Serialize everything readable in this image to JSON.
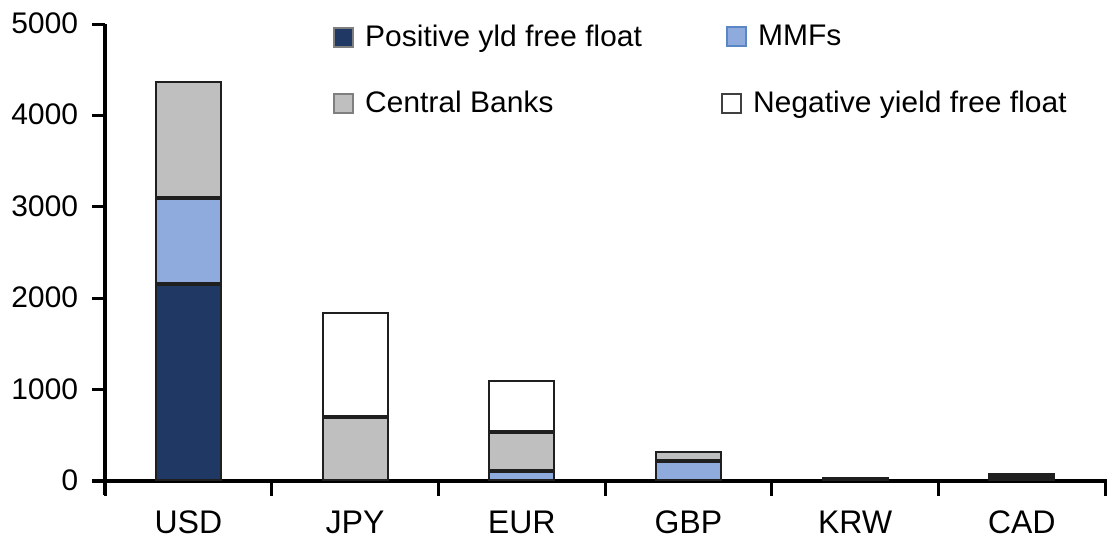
{
  "chart_data": {
    "type": "bar",
    "stacked": true,
    "title": "",
    "xlabel": "",
    "ylabel": "",
    "categories": [
      "USD",
      "JPY",
      "EUR",
      "GBP",
      "KRW",
      "CAD"
    ],
    "series": [
      {
        "name": "Positive yld free float",
        "color": "#1f3864",
        "legend_border": "#7f7f7f",
        "values": [
          2150,
          0,
          0,
          0,
          45,
          25
        ]
      },
      {
        "name": "MMFs",
        "color": "#8faadc",
        "legend_border": "#5b86c5",
        "values": [
          950,
          0,
          110,
          220,
          0,
          0
        ]
      },
      {
        "name": "Central Banks",
        "color": "#bfbfbf",
        "legend_border": "#7f7f7f",
        "values": [
          1280,
          700,
          430,
          110,
          0,
          35
        ]
      },
      {
        "name": "Negative yield free float",
        "color": "#ffffff",
        "legend_border": "#404040",
        "values": [
          0,
          1150,
          560,
          0,
          0,
          0
        ]
      }
    ],
    "totals": [
      4380,
      1850,
      1100,
      330,
      45,
      60
    ],
    "y_axis": {
      "min": 0,
      "max": 5000,
      "tick_step": 1000,
      "tick_labels": [
        "0",
        "1000",
        "2000",
        "3000",
        "4000",
        "5000"
      ]
    },
    "legend_position": "top",
    "legend_columns": 2,
    "grid": false
  },
  "colors": {
    "background": "#ffffff",
    "axis": "#000000",
    "text": "#000000",
    "bar_border": "#1f1f1f"
  }
}
